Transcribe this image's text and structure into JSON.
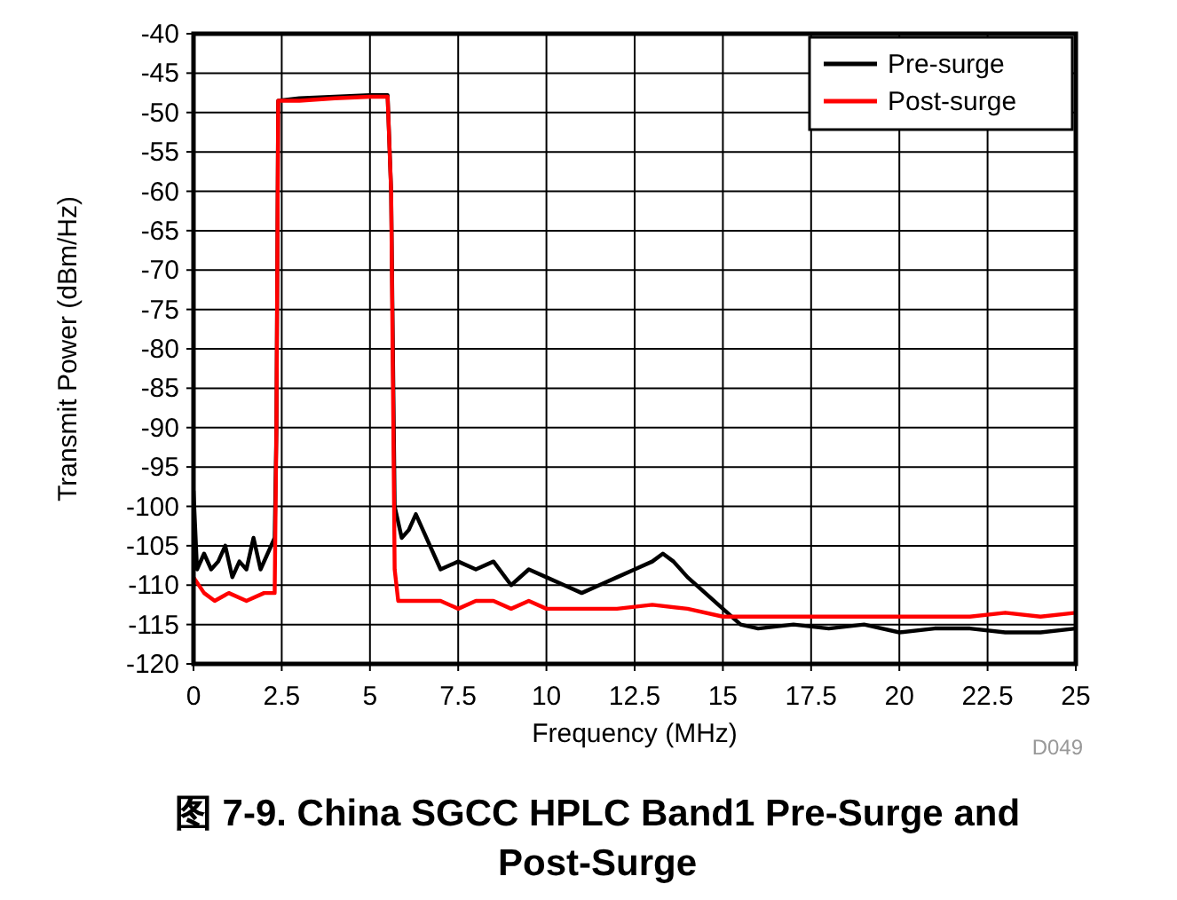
{
  "chart_data": {
    "type": "line",
    "title": "图 7-9. China SGCC HPLC Band1 Pre-Surge and Post-Surge",
    "xlabel": "Frequency (MHz)",
    "ylabel": "Transmit Power (dBm/Hz)",
    "annotations": [
      "D049"
    ],
    "xlim": [
      0,
      25
    ],
    "xticks": [
      0,
      2.5,
      5,
      7.5,
      10,
      12.5,
      15,
      17.5,
      20,
      22.5,
      25
    ],
    "ylim": [
      -120,
      -40
    ],
    "yticks": [
      -120,
      -115,
      -110,
      -105,
      -100,
      -95,
      -90,
      -85,
      -80,
      -75,
      -70,
      -65,
      -60,
      -55,
      -50,
      -45,
      -40
    ],
    "grid": true,
    "legend": "top right",
    "line_style": "solid",
    "marker": "none",
    "series": [
      {
        "name": "Pre-surge",
        "color": "#000000",
        "x": [
          0,
          0.1,
          0.3,
          0.5,
          0.7,
          0.9,
          1.1,
          1.3,
          1.5,
          1.7,
          1.9,
          2.1,
          2.3,
          2.35,
          2.4,
          3,
          4,
          5,
          5.5,
          5.6,
          5.7,
          5.9,
          6.1,
          6.3,
          6.5,
          6.8,
          7,
          7.5,
          8,
          8.5,
          9,
          9.5,
          10,
          10.5,
          11,
          11.5,
          12,
          12.5,
          13,
          13.3,
          13.6,
          14,
          14.5,
          15,
          15.5,
          16,
          17,
          18,
          19,
          20,
          21,
          22,
          23,
          24,
          25
        ],
        "values": [
          -98,
          -108,
          -106,
          -108,
          -107,
          -105,
          -109,
          -107,
          -108,
          -104,
          -108,
          -106,
          -104,
          -90,
          -48.5,
          -48.2,
          -48,
          -47.8,
          -47.8,
          -60,
          -100,
          -104,
          -103,
          -101,
          -103,
          -106,
          -108,
          -107,
          -108,
          -107,
          -110,
          -108,
          -109,
          -110,
          -111,
          -110,
          -109,
          -108,
          -107,
          -106,
          -107,
          -109,
          -111,
          -113,
          -115,
          -115.5,
          -115,
          -115.5,
          -115,
          -116,
          -115.5,
          -115.5,
          -116,
          -116,
          -115.5
        ]
      },
      {
        "name": "Post-surge",
        "color": "#ff0000",
        "x": [
          0,
          0.3,
          0.6,
          1,
          1.5,
          2,
          2.3,
          2.35,
          2.4,
          3,
          4,
          5,
          5.5,
          5.6,
          5.7,
          5.8,
          6.5,
          7,
          7.5,
          8,
          8.5,
          9,
          9.5,
          10,
          11,
          12,
          13,
          14,
          15,
          16,
          17,
          18,
          19,
          20,
          21,
          22,
          23,
          24,
          25
        ],
        "values": [
          -109,
          -111,
          -112,
          -111,
          -112,
          -111,
          -111,
          -90,
          -48.5,
          -48.5,
          -48.2,
          -48,
          -48,
          -60,
          -108,
          -112,
          -112,
          -112,
          -113,
          -112,
          -112,
          -113,
          -112,
          -113,
          -113,
          -113,
          -112.5,
          -113,
          -114,
          -114,
          -114,
          -114,
          -114,
          -114,
          -114,
          -114,
          -113.5,
          -114,
          -113.5
        ]
      }
    ]
  }
}
